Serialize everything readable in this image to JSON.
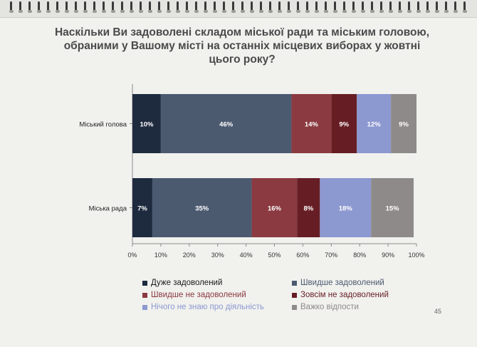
{
  "title": "Наскільки Ви задоволені складом міської ради та міським головою, обраними у Вашому місті на останніх місцевих виборах у жовтні цього року?",
  "page_number": "45",
  "chart_data": {
    "type": "bar",
    "orientation": "horizontal",
    "stacked": true,
    "categories": [
      "Міський голова",
      "Міська рада"
    ],
    "series": [
      {
        "name": "Дуже задоволений",
        "color": "#1e2a3e",
        "values": [
          10,
          7
        ],
        "labels": [
          "10%",
          "7%"
        ]
      },
      {
        "name": "Швидше задоволений",
        "color": "#4c5a70",
        "values": [
          46,
          35
        ],
        "labels": [
          "46%",
          "35%"
        ]
      },
      {
        "name": "Швидше не задоволений",
        "color": "#8a3a40",
        "values": [
          14,
          16
        ],
        "labels": [
          "14%",
          "16%"
        ]
      },
      {
        "name": "Зовсім не задоволений",
        "color": "#661e24",
        "values": [
          9,
          8
        ],
        "labels": [
          "9%",
          "8%"
        ]
      },
      {
        "name": "Нічого не знаю про діяльність",
        "color": "#8c98d0",
        "values": [
          12,
          18
        ],
        "labels": [
          "12%",
          "18%"
        ]
      },
      {
        "name": "Важко відпости",
        "color": "#8e8a8a",
        "values": [
          9,
          15
        ],
        "labels": [
          "9%",
          "15%"
        ]
      }
    ],
    "x_ticks": [
      "0%",
      "10%",
      "20%",
      "30%",
      "40%",
      "50%",
      "60%",
      "70%",
      "80%",
      "90%",
      "100%"
    ],
    "xlim": [
      0,
      100
    ],
    "grid": false,
    "legend_position": "bottom"
  }
}
